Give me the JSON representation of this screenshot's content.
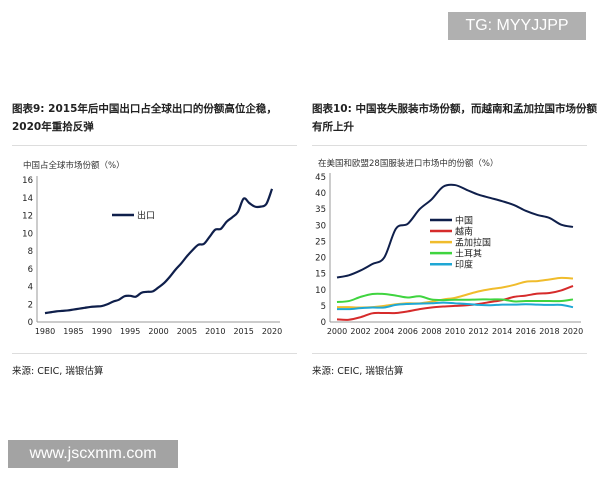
{
  "watermark_top": "TG: MYYJJPP",
  "watermark_bottom": "www.jscxmm.com",
  "chart_data": [
    {
      "type": "line",
      "title": "图表9: 2015年后中国出口占全球出口的份额高位企稳，2020年重拾反弹",
      "ylabel": "中国占全球市场份额（%）",
      "xlabel": "",
      "source": "来源: CEIC, 瑞银估算",
      "xlim": [
        1980,
        2020
      ],
      "ylim": [
        0,
        16
      ],
      "yticks": [
        0,
        2,
        4,
        6,
        8,
        10,
        12,
        14,
        16
      ],
      "xticks": [
        1980,
        1985,
        1990,
        1995,
        2000,
        2005,
        2010,
        2015,
        2020
      ],
      "legend": "center-left",
      "grid": false,
      "x": [
        1980,
        1981,
        1982,
        1983,
        1984,
        1985,
        1986,
        1987,
        1988,
        1989,
        1990,
        1991,
        1992,
        1993,
        1994,
        1995,
        1996,
        1997,
        1998,
        1999,
        2000,
        2001,
        2002,
        2003,
        2004,
        2005,
        2006,
        2007,
        2008,
        2009,
        2010,
        2011,
        2012,
        2013,
        2014,
        2015,
        2016,
        2017,
        2018,
        2019,
        2020
      ],
      "series": [
        {
          "name": "出口",
          "color": "#0f1f4b",
          "values": [
            1.0,
            1.1,
            1.2,
            1.25,
            1.3,
            1.4,
            1.5,
            1.6,
            1.7,
            1.75,
            1.8,
            2.0,
            2.3,
            2.5,
            2.9,
            2.95,
            2.85,
            3.3,
            3.4,
            3.45,
            3.9,
            4.4,
            5.1,
            5.9,
            6.6,
            7.4,
            8.1,
            8.7,
            8.8,
            9.6,
            10.4,
            10.5,
            11.3,
            11.8,
            12.4,
            13.9,
            13.4,
            13.0,
            13.0,
            13.3,
            15.0
          ]
        }
      ]
    },
    {
      "type": "line",
      "title": "图表10: 中国丧失服装市场份额，而越南和孟加拉国市场份额有所上升",
      "ylabel": "在美国和欧盟28国服装进口市场中的份额（%）",
      "xlabel": "",
      "source": "来源: CEIC, 瑞银估算",
      "xlim": [
        2000,
        2020
      ],
      "ylim": [
        0,
        45
      ],
      "yticks": [
        0,
        5,
        10,
        15,
        20,
        25,
        30,
        35,
        40,
        45
      ],
      "xticks": [
        2000,
        2002,
        2004,
        2006,
        2008,
        2010,
        2012,
        2014,
        2016,
        2018,
        2020
      ],
      "legend": "center",
      "grid": false,
      "x": [
        2000,
        2001,
        2002,
        2003,
        2004,
        2005,
        2006,
        2007,
        2008,
        2009,
        2010,
        2011,
        2012,
        2013,
        2014,
        2015,
        2016,
        2017,
        2018,
        2019,
        2020
      ],
      "series": [
        {
          "name": "中国",
          "color": "#0f1f4b",
          "values": [
            13.8,
            14.5,
            16,
            18,
            20,
            29,
            30.5,
            35,
            38,
            42,
            42.5,
            41,
            39.5,
            38.5,
            37.5,
            36.3,
            34.5,
            33.2,
            32.3,
            30.2,
            29.5
          ]
        },
        {
          "name": "越南",
          "color": "#d62b2b",
          "values": [
            0.8,
            0.7,
            1.5,
            2.7,
            2.8,
            2.8,
            3.3,
            4,
            4.5,
            4.8,
            5,
            5.2,
            5.6,
            6.2,
            6.8,
            7.8,
            8.2,
            8.8,
            9,
            9.8,
            11.2
          ]
        },
        {
          "name": "孟加拉国",
          "color": "#f0bc2c",
          "values": [
            4.6,
            4.6,
            4.5,
            4.6,
            5,
            5.5,
            5.8,
            5.8,
            6.3,
            7,
            7.5,
            8.5,
            9.5,
            10.2,
            10.7,
            11.5,
            12.5,
            12.7,
            13.2,
            13.7,
            13.5
          ]
        },
        {
          "name": "土耳其",
          "color": "#3fd43f",
          "values": [
            6.2,
            6.5,
            7.8,
            8.7,
            8.7,
            8.2,
            7.6,
            8,
            7,
            6.8,
            6.9,
            6.9,
            7,
            7,
            7,
            6.4,
            6.5,
            6.5,
            6.5,
            6.5,
            7
          ]
        },
        {
          "name": "印度",
          "color": "#1fa7d4",
          "values": [
            4,
            4,
            4.3,
            4.5,
            4.5,
            5.3,
            5.6,
            5.7,
            5.8,
            6,
            5.8,
            5.6,
            5.3,
            5.2,
            5.4,
            5.4,
            5.5,
            5.4,
            5.3,
            5.3,
            4.6
          ]
        }
      ]
    }
  ]
}
